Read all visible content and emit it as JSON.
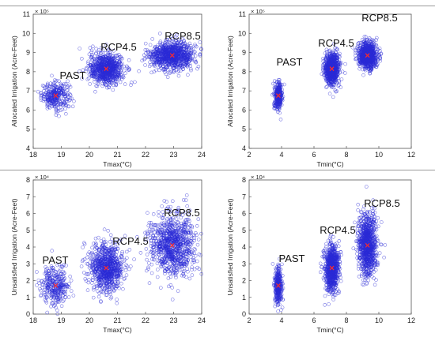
{
  "chart_data": [
    {
      "type": "scatter",
      "xlabel": "Tmax(°C)",
      "ylabel": "Allocated Irrigation (Acre-Feet)",
      "y_multiplier": "× 10⁵",
      "xlim": [
        18,
        24
      ],
      "ylim": [
        4,
        11
      ],
      "xticks": [
        "18",
        "19",
        "20",
        "21",
        "22",
        "23",
        "24"
      ],
      "yticks": [
        "4",
        "5",
        "6",
        "7",
        "8",
        "9",
        "10",
        "11"
      ],
      "grid": false,
      "point_color": "#2b2bd6",
      "mean_color": "#ff2a2a",
      "series": [
        {
          "name": "PAST",
          "x_mean": 18.8,
          "x_sd": 0.25,
          "y_mean": 6.75,
          "y_sd": 0.35,
          "n": 300
        },
        {
          "name": "RCP4.5",
          "x_mean": 20.6,
          "x_sd": 0.3,
          "y_mean": 8.15,
          "y_sd": 0.4,
          "n": 800
        },
        {
          "name": "RCP8.5",
          "x_mean": 22.95,
          "x_sd": 0.4,
          "y_mean": 8.85,
          "y_sd": 0.35,
          "n": 900
        }
      ]
    },
    {
      "type": "scatter",
      "xlabel": "Tmin(°C)",
      "ylabel": "Allocated Irrigation (Acre-Feet)",
      "y_multiplier": "× 10⁵",
      "xlim": [
        2,
        12
      ],
      "ylim": [
        4,
        11
      ],
      "xticks": [
        "2",
        "4",
        "6",
        "8",
        "10",
        "12"
      ],
      "yticks": [
        "4",
        "5",
        "6",
        "7",
        "8",
        "9",
        "10",
        "11"
      ],
      "grid": false,
      "point_color": "#2b2bd6",
      "mean_color": "#ff2a2a",
      "series": [
        {
          "name": "PAST",
          "x_mean": 3.8,
          "x_sd": 0.12,
          "y_mean": 6.75,
          "y_sd": 0.35,
          "n": 300
        },
        {
          "name": "RCP4.5",
          "x_mean": 7.1,
          "x_sd": 0.22,
          "y_mean": 8.15,
          "y_sd": 0.4,
          "n": 800
        },
        {
          "name": "RCP8.5",
          "x_mean": 9.3,
          "x_sd": 0.28,
          "y_mean": 8.85,
          "y_sd": 0.35,
          "n": 900
        }
      ]
    },
    {
      "type": "scatter",
      "xlabel": "Tmax(°C)",
      "ylabel": "Unsatisfied Irrigation (Acre-Feet)",
      "y_multiplier": "× 10⁴",
      "xlim": [
        18,
        24
      ],
      "ylim": [
        0,
        8
      ],
      "xticks": [
        "18",
        "19",
        "20",
        "21",
        "22",
        "23",
        "24"
      ],
      "yticks": [
        "0",
        "1",
        "2",
        "3",
        "4",
        "5",
        "6",
        "7",
        "8"
      ],
      "grid": false,
      "point_color": "#2b2bd6",
      "mean_color": "#ff2a2a",
      "series": [
        {
          "name": "PAST",
          "x_mean": 18.8,
          "x_sd": 0.25,
          "y_mean": 1.7,
          "y_sd": 0.6,
          "n": 300
        },
        {
          "name": "RCP4.5",
          "x_mean": 20.6,
          "x_sd": 0.3,
          "y_mean": 2.75,
          "y_sd": 0.7,
          "n": 800
        },
        {
          "name": "RCP8.5",
          "x_mean": 22.95,
          "x_sd": 0.4,
          "y_mean": 4.1,
          "y_sd": 0.95,
          "n": 900
        }
      ]
    },
    {
      "type": "scatter",
      "xlabel": "Tmin(°C)",
      "ylabel": "Unsatisfied Irrigation (Acre-Feet)",
      "y_multiplier": "× 10⁴",
      "xlim": [
        2,
        12
      ],
      "ylim": [
        0,
        8
      ],
      "xticks": [
        "2",
        "4",
        "6",
        "8",
        "10",
        "12"
      ],
      "yticks": [
        "0",
        "1",
        "2",
        "3",
        "4",
        "5",
        "6",
        "7",
        "8"
      ],
      "grid": false,
      "point_color": "#2b2bd6",
      "mean_color": "#ff2a2a",
      "series": [
        {
          "name": "PAST",
          "x_mean": 3.8,
          "x_sd": 0.12,
          "y_mean": 1.7,
          "y_sd": 0.6,
          "n": 300
        },
        {
          "name": "RCP4.5",
          "x_mean": 7.1,
          "x_sd": 0.22,
          "y_mean": 2.75,
          "y_sd": 0.7,
          "n": 800
        },
        {
          "name": "RCP8.5",
          "x_mean": 9.3,
          "x_sd": 0.28,
          "y_mean": 4.1,
          "y_sd": 0.95,
          "n": 900
        }
      ]
    }
  ]
}
